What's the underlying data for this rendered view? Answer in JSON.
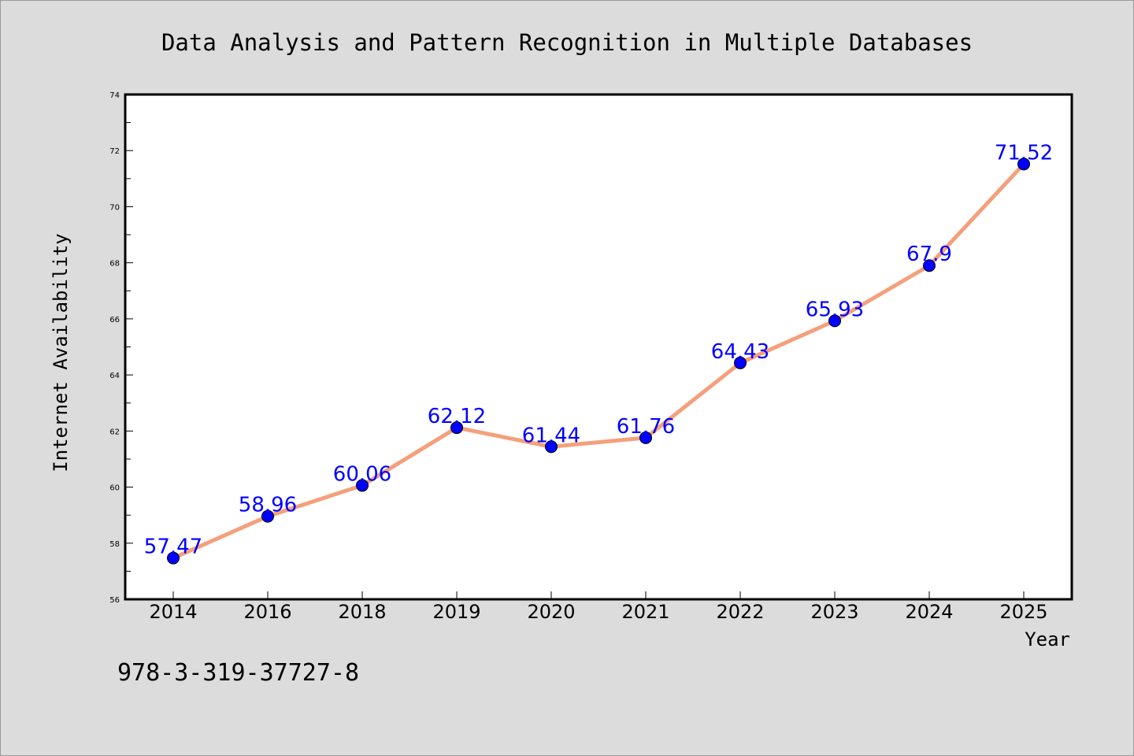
{
  "colors": {
    "background": "#dcdcdc",
    "plot_area": "#ffffff",
    "line": "#f4a07c",
    "marker": "#0000ff",
    "data_label": "#0000ff"
  },
  "annotation": "978-3-319-37727-8",
  "chart_data": {
    "type": "line",
    "title": "Data Analysis and Pattern Recognition in Multiple Databases",
    "xlabel": "Year",
    "ylabel": "Internet Availability",
    "categories": [
      "2014",
      "2016",
      "2018",
      "2019",
      "2020",
      "2021",
      "2022",
      "2023",
      "2024",
      "2025"
    ],
    "series": [
      {
        "values": [
          57.47,
          58.96,
          60.06,
          62.12,
          61.44,
          61.76,
          64.43,
          65.93,
          67.9,
          71.52
        ]
      }
    ],
    "data_labels": [
      "57.47",
      "58.96",
      "60.06",
      "62.12",
      "61.44",
      "61.76",
      "64.43",
      "65.93",
      "67.9",
      "71.52"
    ],
    "ylim": [
      56,
      74
    ],
    "yticks": [
      56,
      58,
      60,
      62,
      64,
      66,
      68,
      70,
      72,
      74
    ],
    "grid": false,
    "legend": "none"
  }
}
